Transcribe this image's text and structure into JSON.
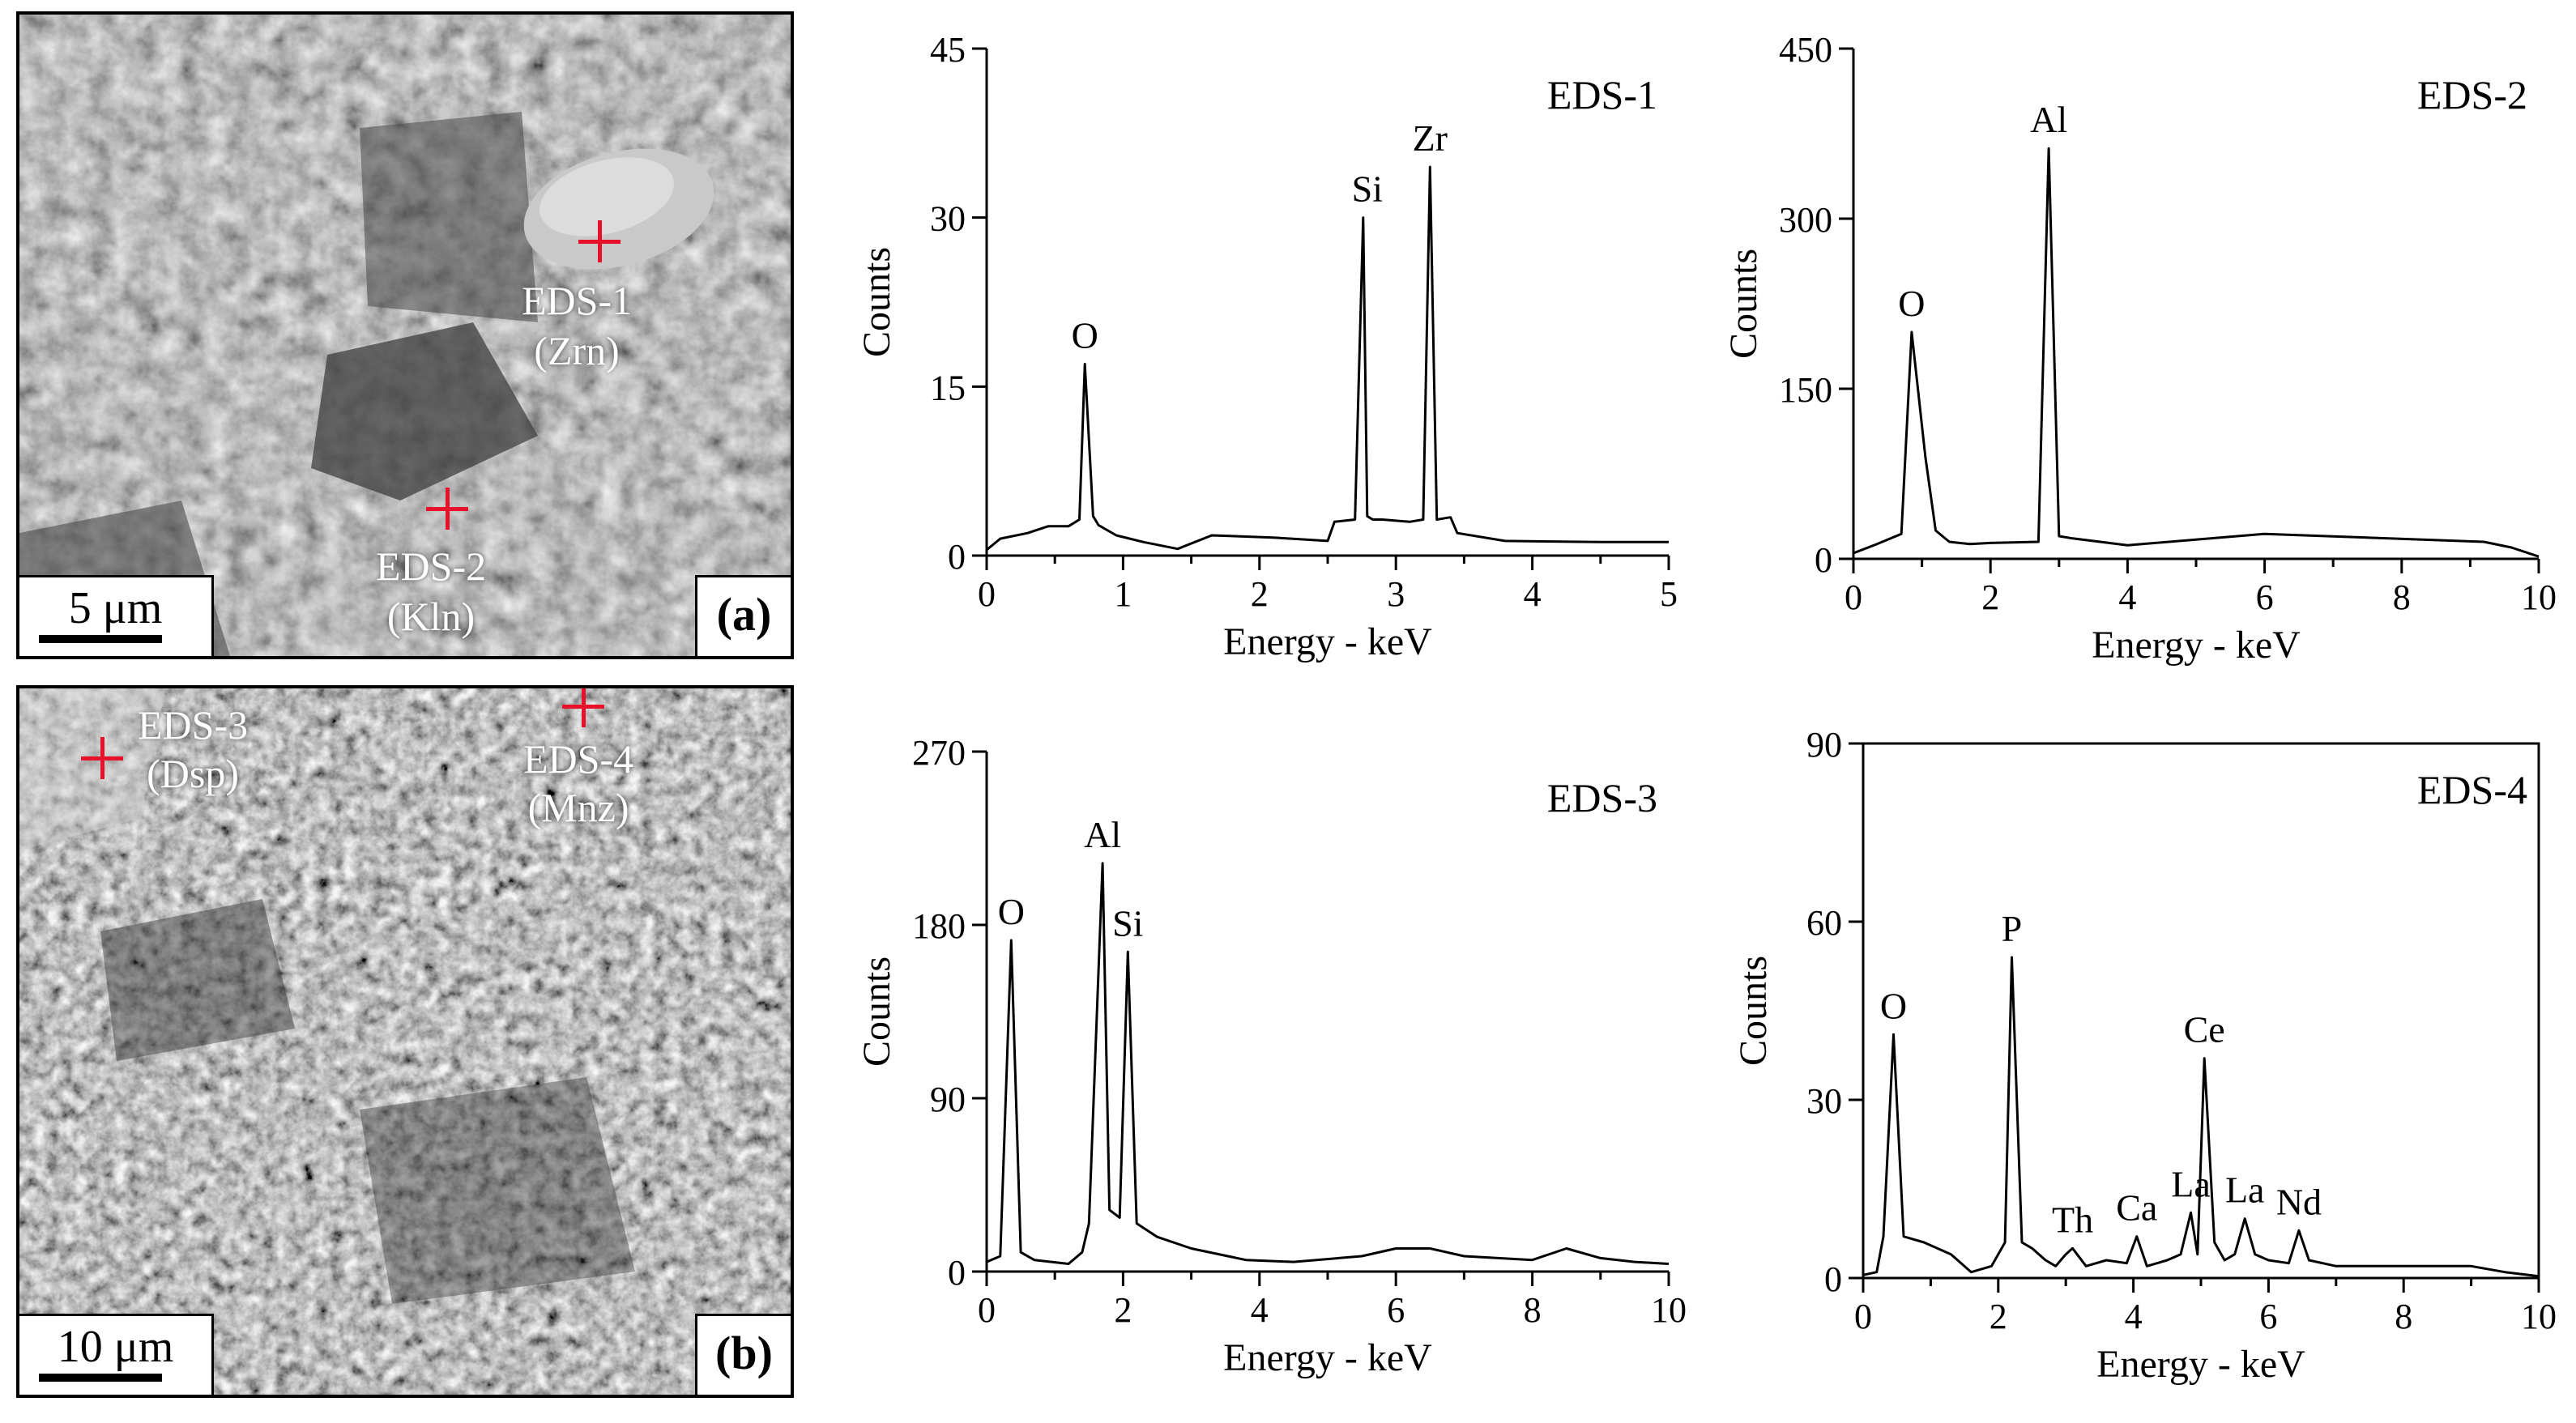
{
  "sem_images": [
    {
      "id": "a",
      "panel_label": "(a)",
      "scale_text": "5 μm",
      "points": [
        {
          "name": "EDS-1",
          "mineral": "(Zrn)"
        },
        {
          "name": "EDS-2",
          "mineral": "(Kln)"
        }
      ]
    },
    {
      "id": "b",
      "panel_label": "(b)",
      "scale_text": "10 μm",
      "points": [
        {
          "name": "EDS-3",
          "mineral": "(Dsp)"
        },
        {
          "name": "EDS-4",
          "mineral": "(Mnz)"
        }
      ]
    }
  ],
  "chart_data": [
    {
      "type": "line",
      "title": "EDS-1",
      "xlabel": "Energy - keV",
      "ylabel": "Counts",
      "xlim": [
        0,
        5
      ],
      "ylim": [
        0,
        45
      ],
      "xticks": [
        "0",
        "1",
        "2",
        "3",
        "4",
        "5"
      ],
      "yticks": [
        "0",
        "15",
        "30",
        "45"
      ],
      "x": [
        0.0,
        0.1,
        0.3,
        0.45,
        0.6,
        0.68,
        0.72,
        0.78,
        0.82,
        0.95,
        1.15,
        1.4,
        1.65,
        2.1,
        2.5,
        2.55,
        2.7,
        2.76,
        2.79,
        2.83,
        2.9,
        3.1,
        3.2,
        3.25,
        3.3,
        3.4,
        3.45,
        3.8,
        4.5,
        5.0
      ],
      "y": [
        0.5,
        1.5,
        2,
        2.6,
        2.6,
        3.2,
        17,
        3.5,
        2.7,
        1.8,
        1.2,
        0.6,
        1.8,
        1.6,
        1.3,
        3,
        3.2,
        30,
        3.5,
        3.2,
        3.2,
        3,
        3.2,
        34.5,
        3.2,
        3.4,
        2,
        1.3,
        1.2,
        1.2
      ],
      "annotations": [
        {
          "text": "O",
          "x": 0.72,
          "y": 17
        },
        {
          "text": "Si",
          "x": 2.79,
          "y": 30
        },
        {
          "text": "Zr",
          "x": 3.25,
          "y": 34.5
        }
      ]
    },
    {
      "type": "line",
      "title": "EDS-2",
      "xlabel": "Energy - keV",
      "ylabel": "Counts",
      "xlim": [
        0,
        10
      ],
      "ylim": [
        0,
        450
      ],
      "xticks": [
        "0",
        "2",
        "4",
        "6",
        "8",
        "10"
      ],
      "yticks": [
        "0",
        "150",
        "300",
        "450"
      ],
      "x": [
        0.0,
        0.3,
        0.7,
        0.85,
        1.05,
        1.2,
        1.4,
        1.7,
        2.0,
        2.7,
        2.85,
        3.0,
        3.2,
        4.0,
        6.0,
        9.2,
        9.6,
        10.0
      ],
      "y": [
        5,
        12,
        22,
        200,
        90,
        25,
        15,
        13,
        14,
        15,
        362,
        20,
        18,
        12,
        22,
        15,
        10,
        2
      ],
      "annotations": [
        {
          "text": "O",
          "x": 0.85,
          "y": 200
        },
        {
          "text": "Al",
          "x": 2.85,
          "y": 362
        }
      ]
    },
    {
      "type": "line",
      "title": "EDS-3",
      "xlabel": "Energy - keV",
      "ylabel": "Counts",
      "xlim": [
        0,
        10
      ],
      "ylim": [
        0,
        270
      ],
      "xticks": [
        "0",
        "2",
        "4",
        "6",
        "8",
        "10"
      ],
      "yticks": [
        "0",
        "90",
        "180",
        "270"
      ],
      "x": [
        0.0,
        0.2,
        0.36,
        0.5,
        0.7,
        1.2,
        1.4,
        1.5,
        1.7,
        1.8,
        1.95,
        2.07,
        2.2,
        2.5,
        3.0,
        3.8,
        4.5,
        5.5,
        6.0,
        6.5,
        7.0,
        8.0,
        8.5,
        9.0,
        9.5,
        10.0
      ],
      "y": [
        5,
        8,
        172,
        10,
        6,
        4,
        10,
        25,
        212,
        32,
        28,
        166,
        25,
        18,
        12,
        6,
        5,
        8,
        12,
        12,
        8,
        6,
        12,
        7,
        5,
        4
      ],
      "annotations": [
        {
          "text": "O",
          "x": 0.36,
          "y": 172
        },
        {
          "text": "Al",
          "x": 1.7,
          "y": 212
        },
        {
          "text": "Si",
          "x": 2.07,
          "y": 166
        }
      ]
    },
    {
      "type": "line",
      "title": "EDS-4",
      "xlabel": "Energy - keV",
      "ylabel": "Counts",
      "xlim": [
        0,
        10
      ],
      "ylim": [
        0,
        90
      ],
      "xticks": [
        "0",
        "2",
        "4",
        "6",
        "8",
        "10"
      ],
      "yticks": [
        "0",
        "30",
        "60",
        "90"
      ],
      "x": [
        0.0,
        0.2,
        0.3,
        0.45,
        0.6,
        0.9,
        1.3,
        1.6,
        1.9,
        2.1,
        2.2,
        2.35,
        2.5,
        2.7,
        2.85,
        3.0,
        3.1,
        3.3,
        3.6,
        3.9,
        4.05,
        4.2,
        4.5,
        4.7,
        4.85,
        4.95,
        5.05,
        5.2,
        5.35,
        5.5,
        5.65,
        5.8,
        6.0,
        6.3,
        6.45,
        6.6,
        7.0,
        8.0,
        9.0,
        9.5,
        10.0
      ],
      "y": [
        0.5,
        1,
        7,
        41,
        7,
        6,
        4,
        1,
        2,
        6,
        54,
        6,
        5,
        3,
        2,
        4,
        5,
        2,
        3,
        2.5,
        7,
        2,
        3,
        4,
        11,
        4,
        37,
        6,
        3,
        4,
        10,
        4,
        3,
        2.5,
        8,
        3,
        2,
        2,
        2,
        1,
        0.3
      ],
      "annotations": [
        {
          "text": "O",
          "x": 0.45,
          "y": 41
        },
        {
          "text": "P",
          "x": 2.2,
          "y": 54
        },
        {
          "text": "Th",
          "x": 3.1,
          "y": 5
        },
        {
          "text": "Ca",
          "x": 4.05,
          "y": 7
        },
        {
          "text": "La",
          "x": 4.85,
          "y": 11
        },
        {
          "text": "Ce",
          "x": 5.05,
          "y": 37
        },
        {
          "text": "La",
          "x": 5.65,
          "y": 10
        },
        {
          "text": "Nd",
          "x": 6.45,
          "y": 8
        }
      ]
    }
  ]
}
